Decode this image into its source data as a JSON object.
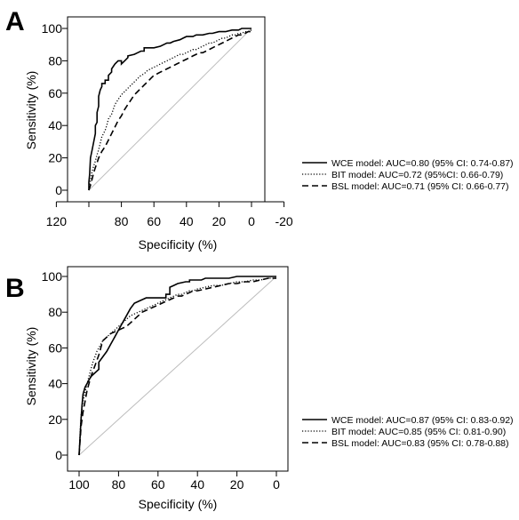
{
  "chart_data": [
    {
      "panel": "A",
      "type": "line",
      "xlabel": "Specificity (%)",
      "ylabel": "Sensitivity (%)",
      "xlim": [
        120,
        -20
      ],
      "ylim": [
        0,
        100
      ],
      "xticks": [
        120,
        100,
        80,
        60,
        40,
        20,
        0,
        -20
      ],
      "xtick_labels": [
        "120",
        "",
        "80",
        "60",
        "40",
        "20",
        "0",
        "-20"
      ],
      "yticks": [
        0,
        20,
        40,
        60,
        80,
        100
      ],
      "diagonal": true,
      "legend_position": "right",
      "series": [
        {
          "name": "WCE model: AUC=0.80 (95% CI: 0.74-0.87)",
          "style": "solid",
          "x": [
            100,
            100,
            99.5,
            99,
            98,
            97,
            96,
            96,
            95,
            95,
            94,
            94,
            93,
            92,
            92,
            90,
            90,
            88,
            88,
            86,
            86,
            84,
            82,
            80,
            80,
            78,
            76,
            76,
            72,
            70,
            68,
            66,
            66,
            62,
            60,
            56,
            54,
            52,
            50,
            48,
            44,
            42,
            40,
            36,
            34,
            30,
            26,
            24,
            20,
            16,
            12,
            8,
            6,
            4,
            2,
            0
          ],
          "y": [
            0,
            5,
            10,
            20,
            25,
            30,
            35,
            40,
            42,
            48,
            52,
            58,
            62,
            64,
            66,
            66,
            68,
            68,
            71,
            73,
            75,
            78,
            80,
            80,
            78,
            80,
            82,
            83,
            84,
            85,
            86,
            86,
            88,
            88,
            88,
            89,
            90,
            91,
            91,
            92,
            93,
            94,
            95,
            95,
            96,
            96,
            97,
            97,
            98,
            98,
            99,
            99,
            100,
            100,
            100,
            100
          ]
        },
        {
          "name": "BIT model: AUC=0.72 (95%CI: 0.66-0.79)",
          "style": "dotted",
          "x": [
            100,
            99,
            98,
            96,
            95,
            94,
            93,
            92,
            90,
            89,
            88,
            86,
            85,
            84,
            82,
            80,
            78,
            76,
            74,
            72,
            70,
            68,
            66,
            64,
            62,
            60,
            58,
            56,
            54,
            52,
            50,
            48,
            46,
            44,
            42,
            40,
            38,
            36,
            34,
            32,
            30,
            28,
            26,
            24,
            22,
            20,
            18,
            16,
            14,
            12,
            10,
            8,
            6,
            4,
            2,
            0
          ],
          "y": [
            0,
            6,
            12,
            18,
            22,
            25,
            29,
            33,
            37,
            40,
            44,
            47,
            50,
            53,
            56,
            59,
            61,
            63,
            65,
            67,
            69,
            71,
            72,
            74,
            75,
            76,
            77,
            78,
            79,
            80,
            81,
            82,
            83,
            84,
            84,
            85,
            86,
            87,
            87,
            88,
            89,
            90,
            91,
            91,
            92,
            93,
            94,
            94,
            95,
            96,
            96,
            97,
            97,
            98,
            98,
            99
          ]
        },
        {
          "name": "BSL model: AUC=0.71 (95% CI: 0.66-0.77)",
          "style": "dashed",
          "x": [
            100,
            99,
            98,
            97,
            96,
            95,
            94,
            92,
            90,
            88,
            86,
            84,
            82,
            80,
            78,
            76,
            74,
            72,
            70,
            68,
            66,
            64,
            62,
            60,
            58,
            56,
            54,
            52,
            50,
            48,
            46,
            44,
            42,
            40,
            38,
            36,
            34,
            32,
            30,
            28,
            26,
            24,
            22,
            20,
            18,
            16,
            14,
            12,
            10,
            8,
            6,
            4,
            2,
            0
          ],
          "y": [
            0,
            3,
            7,
            11,
            14,
            17,
            20,
            24,
            27,
            31,
            35,
            39,
            43,
            46,
            50,
            53,
            56,
            59,
            61,
            63,
            65,
            67,
            69,
            71,
            72,
            73,
            74,
            75,
            76,
            77,
            78,
            79,
            80,
            81,
            82,
            83,
            84,
            85,
            85,
            86,
            87,
            88,
            89,
            90,
            91,
            92,
            93,
            94,
            95,
            96,
            96,
            97,
            98,
            98
          ]
        }
      ]
    },
    {
      "panel": "B",
      "type": "line",
      "xlabel": "Specificity (%)",
      "ylabel": "Sensitivity (%)",
      "xlim": [
        100,
        0
      ],
      "ylim": [
        0,
        100
      ],
      "xticks": [
        100,
        80,
        60,
        40,
        20,
        0
      ],
      "xtick_labels": [
        "100",
        "80",
        "60",
        "40",
        "20",
        "0"
      ],
      "yticks": [
        0,
        20,
        40,
        60,
        80,
        100
      ],
      "diagonal": true,
      "legend_position": "right",
      "series": [
        {
          "name": "WCE model: AUC=0.87 (95% CI: 0.83-0.92)",
          "style": "solid",
          "x": [
            100,
            99.5,
            99,
            98.5,
            98,
            97,
            96,
            95,
            94,
            92,
            90,
            90,
            88,
            86,
            84,
            82,
            80,
            78,
            76,
            74,
            72,
            70,
            68,
            66,
            60,
            56,
            56,
            54,
            54,
            52,
            50,
            46,
            44,
            44,
            40,
            38,
            36,
            34,
            30,
            26,
            24,
            20,
            14,
            10,
            6,
            4,
            2,
            0
          ],
          "y": [
            0,
            10,
            20,
            28,
            34,
            38,
            40,
            42,
            44,
            46,
            48,
            52,
            55,
            58,
            62,
            66,
            70,
            74,
            78,
            82,
            85,
            86,
            87,
            88,
            88,
            88,
            90,
            90,
            94,
            95,
            96,
            97,
            97,
            98,
            98,
            98,
            99,
            99,
            99,
            99,
            99,
            100,
            100,
            100,
            100,
            100,
            100,
            100
          ]
        },
        {
          "name": "BIT model: AUC=0.85 (95% CI: 0.81-0.90)",
          "style": "dotted",
          "x": [
            100,
            99.5,
            99,
            98,
            97,
            96,
            95,
            94,
            93,
            92,
            91,
            90,
            89,
            88,
            86,
            84,
            82,
            80,
            78,
            76,
            74,
            72,
            70,
            68,
            66,
            64,
            62,
            60,
            58,
            56,
            54,
            52,
            50,
            48,
            46,
            44,
            42,
            40,
            36,
            32,
            28,
            24,
            20,
            16,
            12,
            8,
            4,
            0
          ],
          "y": [
            0,
            12,
            22,
            30,
            35,
            40,
            44,
            48,
            52,
            55,
            58,
            60,
            62,
            64,
            66,
            68,
            70,
            72,
            74,
            76,
            78,
            79,
            80,
            81,
            82,
            83,
            84,
            85,
            86,
            87,
            88,
            89,
            90,
            90,
            91,
            92,
            92,
            93,
            94,
            95,
            95,
            96,
            97,
            97,
            98,
            98,
            99,
            99
          ]
        },
        {
          "name": "BSL model: AUC=0.83 (95% CI: 0.78-0.88)",
          "style": "dashed",
          "x": [
            100,
            99.5,
            99,
            98,
            97,
            96,
            95,
            94,
            93,
            92,
            91,
            90,
            89,
            88,
            86,
            84,
            82,
            80,
            78,
            76,
            74,
            72,
            70,
            68,
            66,
            64,
            62,
            60,
            58,
            56,
            54,
            52,
            50,
            48,
            46,
            44,
            42,
            40,
            36,
            32,
            28,
            24,
            20,
            16,
            12,
            8,
            4,
            0
          ],
          "y": [
            0,
            8,
            16,
            24,
            30,
            36,
            40,
            44,
            47,
            50,
            53,
            56,
            60,
            64,
            66,
            68,
            69,
            70,
            71,
            72,
            74,
            76,
            78,
            80,
            81,
            82,
            83,
            84,
            85,
            86,
            87,
            88,
            89,
            89,
            90,
            91,
            92,
            92,
            93,
            94,
            95,
            96,
            96,
            97,
            97,
            98,
            99,
            99
          ]
        }
      ]
    }
  ]
}
